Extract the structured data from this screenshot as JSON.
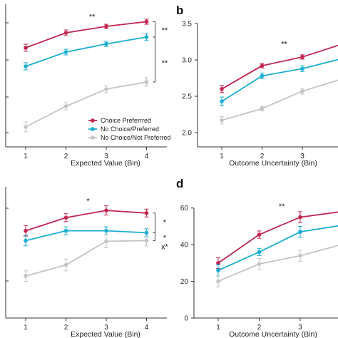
{
  "colors": {
    "choice_preferred": "#c2264f",
    "no_choice_preferred": "#1aaed3",
    "no_choice_not_preferred": "#c4c4c4",
    "axis": "#333333"
  },
  "legend": {
    "items": [
      {
        "label": "Choice Preferrred",
        "color_key": "choice_preferred"
      },
      {
        "label": "No Choice/Preferred",
        "color_key": "no_choice_preferred"
      },
      {
        "label": "No Choice/Not Preferred",
        "color_key": "no_choice_not_preferred"
      }
    ]
  },
  "chart_data": [
    {
      "type": "line",
      "panel_label": "",
      "xlabel": "Expected Value (Bin)",
      "ylabel": "",
      "x": [
        1,
        2,
        3,
        4
      ],
      "xticks": [
        "1",
        "2",
        "3",
        "4"
      ],
      "ylim": [
        0,
        1
      ],
      "yticks": [],
      "grid": false,
      "legend_position": "center-right",
      "series": [
        {
          "name": "Choice Preferrred",
          "color_key": "choice_preferred",
          "values": [
            0.695,
            0.8,
            0.845,
            0.878
          ],
          "errors": [
            0.025,
            0.02,
            0.015,
            0.018
          ]
        },
        {
          "name": "No Choice/Preferred",
          "color_key": "no_choice_preferred",
          "values": [
            0.565,
            0.665,
            0.722,
            0.77
          ],
          "errors": [
            0.025,
            0.02,
            0.018,
            0.022
          ]
        },
        {
          "name": "No Choice/Not Preferred",
          "color_key": "no_choice_not_preferred",
          "values": [
            0.14,
            0.285,
            0.405,
            0.455
          ],
          "errors": [
            0.035,
            0.025,
            0.025,
            0.03
          ]
        }
      ],
      "annotations": [
        {
          "text": "**",
          "x": 2.65,
          "y": 0.915
        },
        {
          "text": "**",
          "bracket": "series_1_2",
          "x": 4.45,
          "y": 0.82
        },
        {
          "text": "**",
          "bracket": "series_2_3",
          "x": 4.45,
          "y": 0.59
        }
      ]
    },
    {
      "type": "line",
      "panel_label": "b",
      "xlabel": "Outcome Uncertainty (Bin)",
      "ylabel": "",
      "x": [
        1,
        2,
        3,
        4
      ],
      "xticks": [
        "1",
        "2",
        "3"
      ],
      "ylim": [
        2.0,
        3.5
      ],
      "yticks": [
        "2.0",
        "2.5",
        "3.0",
        "3.5"
      ],
      "grid": false,
      "series": [
        {
          "name": "Choice Preferrred",
          "color_key": "choice_preferred",
          "values": [
            2.6,
            2.92,
            3.04,
            3.22
          ],
          "errors": [
            0.05,
            0.03,
            0.03,
            0.04
          ]
        },
        {
          "name": "No Choice/Preferred",
          "color_key": "no_choice_preferred",
          "values": [
            2.43,
            2.78,
            2.88,
            3.02
          ],
          "errors": [
            0.06,
            0.04,
            0.04,
            0.04
          ]
        },
        {
          "name": "No Choice/Not Preferred",
          "color_key": "no_choice_not_preferred",
          "values": [
            2.17,
            2.33,
            2.57,
            2.74
          ],
          "errors": [
            0.05,
            0.03,
            0.04,
            0.04
          ]
        }
      ],
      "annotations": [
        {
          "text": "**",
          "x": 2.55,
          "y": 3.22
        }
      ]
    },
    {
      "type": "line",
      "panel_label": "",
      "xlabel": "Expected Value (Bin)",
      "ylabel": "",
      "x": [
        1,
        2,
        3,
        4
      ],
      "xticks": [
        "1",
        "2",
        "3",
        "4"
      ],
      "ylim": [
        0,
        1
      ],
      "yticks": [],
      "grid": false,
      "series": [
        {
          "name": "Choice Preferrred",
          "color_key": "choice_preferred",
          "values": [
            0.665,
            0.765,
            0.82,
            0.8
          ],
          "errors": [
            0.04,
            0.03,
            0.035,
            0.03
          ]
        },
        {
          "name": "No Choice/Preferred",
          "color_key": "no_choice_preferred",
          "values": [
            0.59,
            0.665,
            0.665,
            0.65
          ],
          "errors": [
            0.04,
            0.03,
            0.03,
            0.03
          ]
        },
        {
          "name": "No Choice/Not Preferred",
          "color_key": "no_choice_not_preferred",
          "values": [
            0.32,
            0.405,
            0.585,
            0.59
          ],
          "errors": [
            0.04,
            0.045,
            0.05,
            0.04
          ]
        }
      ],
      "annotations": [
        {
          "text": "*",
          "x": 2.55,
          "y": 0.895
        },
        {
          "text": "*",
          "bracket": "series_1_2",
          "x": 4.45,
          "y": 0.73
        },
        {
          "text": "*",
          "bracket": "series_2_3",
          "x": 4.45,
          "y": 0.615
        },
        {
          "text": "x*",
          "x": 4.45,
          "y": 0.545
        }
      ]
    },
    {
      "type": "line",
      "panel_label": "d",
      "xlabel": "Outcome Uncertainty (Bin)",
      "ylabel": "",
      "x": [
        1,
        2,
        3,
        4
      ],
      "xticks": [
        "1",
        "2",
        "3"
      ],
      "ylim": [
        0,
        70
      ],
      "yticks": [
        "0",
        "20",
        "40",
        "60"
      ],
      "grid": false,
      "series": [
        {
          "name": "Choice Preferrred",
          "color_key": "choice_preferred",
          "values": [
            30,
            45.5,
            55,
            58
          ],
          "errors": [
            3,
            2,
            3,
            2
          ]
        },
        {
          "name": "No Choice/Preferred",
          "color_key": "no_choice_preferred",
          "values": [
            26,
            36,
            47,
            50.5
          ],
          "errors": [
            3,
            2,
            3,
            2
          ]
        },
        {
          "name": "No Choice/Not Preferred",
          "color_key": "no_choice_not_preferred",
          "values": [
            20,
            29.5,
            34,
            40
          ],
          "errors": [
            3,
            3,
            3,
            3
          ]
        }
      ],
      "annotations": [
        {
          "text": "**",
          "x": 2.55,
          "y": 61
        }
      ]
    }
  ]
}
